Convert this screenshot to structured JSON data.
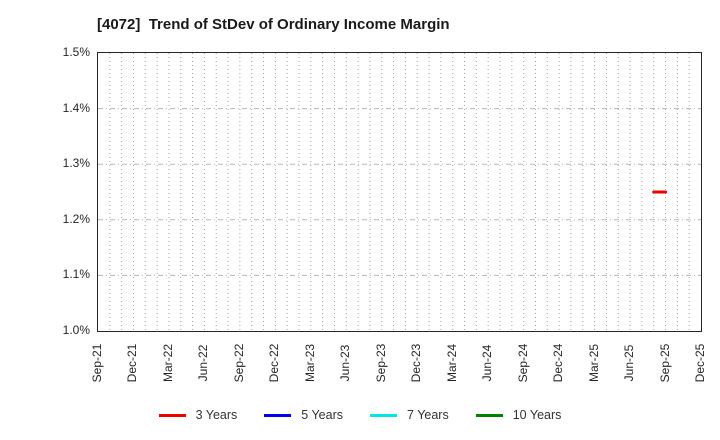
{
  "chart_data": {
    "type": "line",
    "title": "[4072]  Trend of StDev of Ordinary Income Margin",
    "ylabel": "",
    "xlabel": "",
    "ylim": [
      1.0,
      1.5
    ],
    "y_ticks": [
      {
        "label": "1.0%",
        "value": 1.0
      },
      {
        "label": "1.1%",
        "value": 1.1
      },
      {
        "label": "1.2%",
        "value": 1.2
      },
      {
        "label": "1.3%",
        "value": 1.3
      },
      {
        "label": "1.4%",
        "value": 1.4
      },
      {
        "label": "1.5%",
        "value": 1.5
      }
    ],
    "y_grid_values": [
      1.1,
      1.2,
      1.3,
      1.4
    ],
    "x_tick_labels": [
      "Sep-21",
      "Dec-21",
      "Mar-22",
      "Jun-22",
      "Sep-22",
      "Dec-22",
      "Mar-23",
      "Jun-23",
      "Sep-23",
      "Dec-23",
      "Mar-24",
      "Jun-24",
      "Sep-24",
      "Dec-24",
      "Mar-25",
      "Jun-25",
      "Sep-25",
      "Dec-25"
    ],
    "x_tick_month_step": 3,
    "x_months_span": 51,
    "grid": {
      "vertical": "monthly-dotted",
      "horizontal": "0.1%-dash-dot",
      "vertical_color": "#a3a3a3",
      "horizontal_color": "#b5b5b5"
    },
    "legend_position": "bottom",
    "series": [
      {
        "name": "3 Years",
        "color": "#ee0000",
        "points": [
          {
            "x_label": "Aug-25",
            "month_index": 47,
            "y": 1.25
          },
          {
            "x_label": "Sep-25",
            "month_index": 48,
            "y": 1.25
          }
        ]
      },
      {
        "name": "5 Years",
        "color": "#0000ee",
        "points": []
      },
      {
        "name": "7 Years",
        "color": "#00e5e5",
        "points": []
      },
      {
        "name": "10 Years",
        "color": "#008000",
        "points": []
      }
    ]
  }
}
